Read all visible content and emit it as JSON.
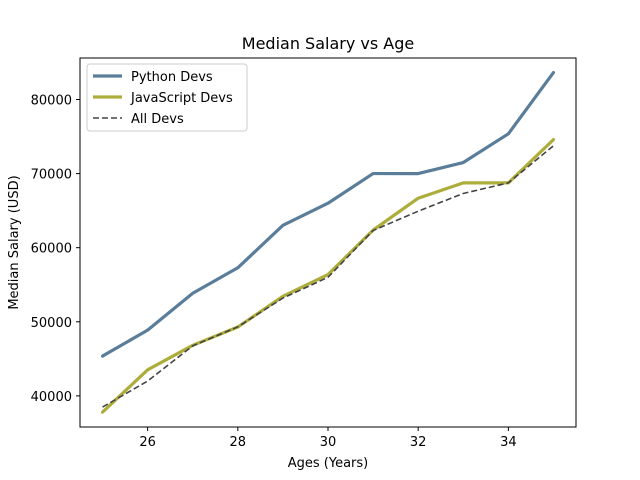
{
  "chart_data": {
    "type": "line",
    "title": "Median Salary vs Age",
    "xlabel": "Ages (Years)",
    "ylabel": "Median Salary (USD)",
    "x": [
      25,
      26,
      27,
      28,
      29,
      30,
      31,
      32,
      33,
      34,
      35
    ],
    "xlim": [
      24.5,
      35.5
    ],
    "ylim": [
      35800,
      85600
    ],
    "xticks": [
      26,
      28,
      30,
      32,
      34
    ],
    "yticks": [
      40000,
      50000,
      60000,
      70000,
      80000
    ],
    "grid": false,
    "legend_position": "upper-left",
    "series": [
      {
        "name": "Python Devs",
        "color": "#5a7d9a",
        "style": "solid",
        "values": [
          45372,
          48876,
          53850,
          57287,
          63016,
          65998,
          70003,
          70000,
          71496,
          75370,
          83640
        ]
      },
      {
        "name": "JavaScript Devs",
        "color": "#adad3b",
        "style": "solid",
        "values": [
          37810,
          43515,
          46823,
          49293,
          53437,
          56373,
          62375,
          66674,
          68745,
          68746,
          74583
        ]
      },
      {
        "name": "All Devs",
        "color": "#444444",
        "style": "dashed",
        "values": [
          38496,
          42000,
          46752,
          49320,
          53200,
          56000,
          62316,
          64928,
          67317,
          68748,
          73752
        ]
      }
    ]
  }
}
